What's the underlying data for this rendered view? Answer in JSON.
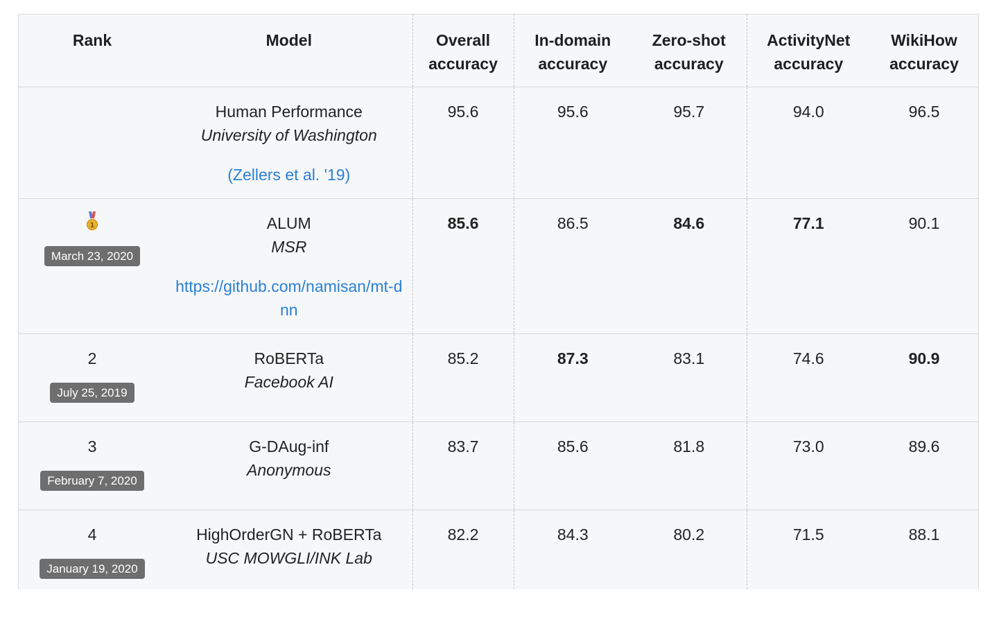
{
  "columns": {
    "rank": "Rank",
    "model": "Model",
    "overall": [
      "Overall",
      "accuracy"
    ],
    "indomain": [
      "In-domain",
      "accuracy"
    ],
    "zeroshot": [
      "Zero-shot",
      "accuracy"
    ],
    "activitynet": [
      "ActivityNet",
      "accuracy"
    ],
    "wikihow": [
      "WikiHow",
      "accuracy"
    ]
  },
  "rows": [
    {
      "rank": "",
      "date": "",
      "model": "Human Performance",
      "org": "University of Washington",
      "link": "(Zellers et al. '19)",
      "overall": "95.6",
      "indomain": "95.6",
      "zeroshot": "95.7",
      "activitynet": "94.0",
      "wikihow": "96.5"
    },
    {
      "rank": "medal-icon",
      "date": "March 23, 2020",
      "model": "ALUM",
      "org": "MSR",
      "link": "https://github.com/namisan/mt-dnn",
      "overall": "85.6",
      "indomain": "86.5",
      "zeroshot": "84.6",
      "activitynet": "77.1",
      "wikihow": "90.1"
    },
    {
      "rank": "2",
      "date": "July 25, 2019",
      "model": "RoBERTa",
      "org": "Facebook AI",
      "link": "",
      "overall": "85.2",
      "indomain": "87.3",
      "zeroshot": "83.1",
      "activitynet": "74.6",
      "wikihow": "90.9"
    },
    {
      "rank": "3",
      "date": "February 7, 2020",
      "model": "G-DAug-inf",
      "org": "Anonymous",
      "link": "",
      "overall": "83.7",
      "indomain": "85.6",
      "zeroshot": "81.8",
      "activitynet": "73.0",
      "wikihow": "89.6"
    },
    {
      "rank": "4",
      "date": "January 19, 2020",
      "model": "HighOrderGN + RoBERTa",
      "org": "USC MOWGLI/INK Lab",
      "link": "",
      "overall": "82.2",
      "indomain": "84.3",
      "zeroshot": "80.2",
      "activitynet": "71.5",
      "wikihow": "88.1"
    }
  ],
  "colors": {
    "link": "#2a7fd6",
    "badge": "#6e6e6e",
    "background": "#f6f7f9"
  }
}
